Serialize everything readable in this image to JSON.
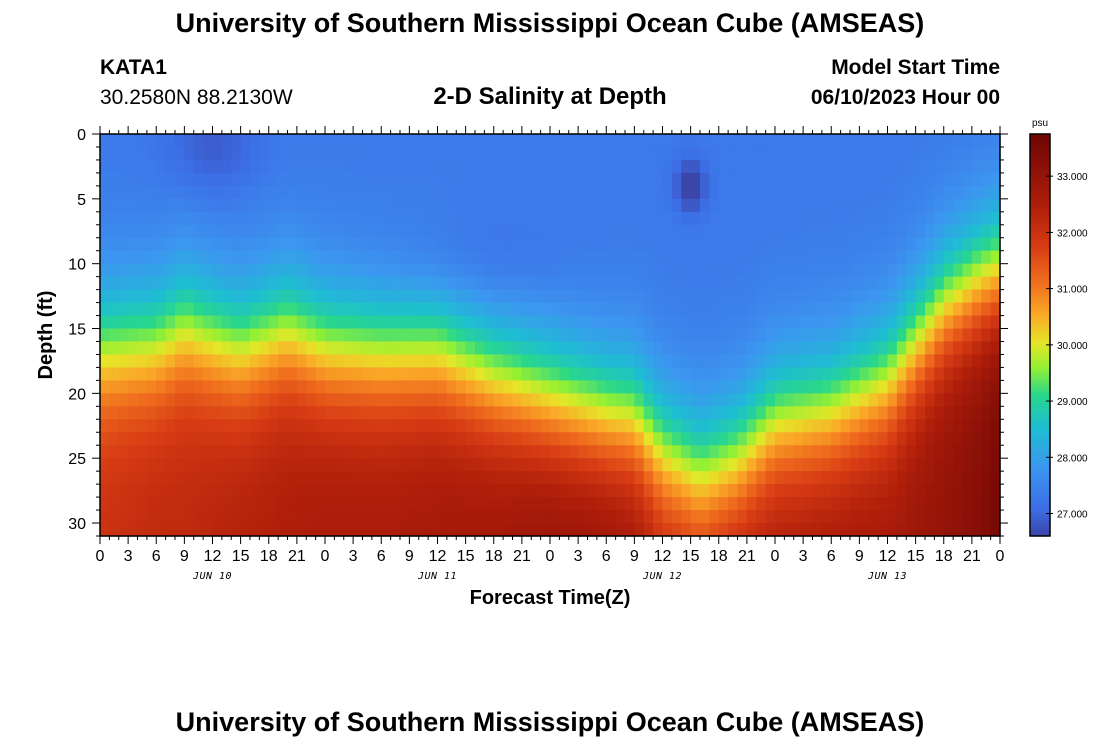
{
  "header": {
    "title": "University of Southern Mississippi Ocean Cube (AMSEAS)",
    "station_id": "KATA1",
    "station_coords": "30.2580N  88.2130W",
    "plot_title": "2-D Salinity at Depth",
    "model_start_label": "Model Start Time",
    "model_start_value": "06/10/2023 Hour 00"
  },
  "footer": {
    "title": "University of Southern Mississippi Ocean Cube (AMSEAS)"
  },
  "chart_data": {
    "type": "heatmap",
    "title": "2-D Salinity at Depth",
    "xlabel": "Forecast Time(Z)",
    "ylabel": "Depth (ft)",
    "x_start_hour": 0,
    "x_end_hour": 96,
    "x_tick_labels": [
      "0",
      "3",
      "6",
      "9",
      "12",
      "15",
      "18",
      "21",
      "0",
      "3",
      "6",
      "9",
      "12",
      "15",
      "18",
      "21",
      "0",
      "3",
      "6",
      "9",
      "12",
      "15",
      "18",
      "21",
      "0",
      "3",
      "6",
      "9",
      "12",
      "15",
      "18",
      "21",
      "0"
    ],
    "day_labels": [
      {
        "label": "JUN 10",
        "hour": 12
      },
      {
        "label": "JUN 11",
        "hour": 36
      },
      {
        "label": "JUN 12",
        "hour": 60
      },
      {
        "label": "JUN 13",
        "hour": 84
      }
    ],
    "ylim": [
      0,
      31
    ],
    "y_ticks": [
      0,
      5,
      10,
      15,
      20,
      25,
      30
    ],
    "colorbar": {
      "unit": "psu",
      "min": 26.6,
      "max": 33.75,
      "ticks": [
        "27.000",
        "28.000",
        "29.000",
        "30.000",
        "31.000",
        "32.000",
        "33.000"
      ]
    },
    "halocline_hours": [
      0,
      6,
      9,
      12,
      15,
      20,
      24,
      30,
      36,
      42,
      48,
      54,
      57,
      60,
      64,
      68,
      72,
      78,
      84,
      90,
      94,
      96
    ],
    "halocline_depth_ft": [
      16.5,
      16.2,
      14.8,
      15.8,
      16.6,
      15.2,
      16.6,
      17.0,
      17.0,
      19.0,
      20.5,
      21.8,
      22.0,
      24.5,
      26.2,
      25.2,
      22.3,
      21.5,
      19.2,
      13.5,
      11.5,
      11.0
    ],
    "deep_salinity_psu": [
      32.0,
      32.2,
      32.2,
      32.3,
      32.4,
      32.5,
      32.6,
      32.6,
      32.7,
      32.8,
      33.0,
      33.0,
      32.8,
      32.4,
      32.3,
      32.6,
      32.6,
      32.7,
      32.7,
      33.0,
      33.3,
      33.6
    ],
    "surface_salinity_psu": 27.3,
    "minimum_salinity": {
      "hour": 63,
      "depth_ft": 4,
      "value_psu": 26.6
    }
  }
}
